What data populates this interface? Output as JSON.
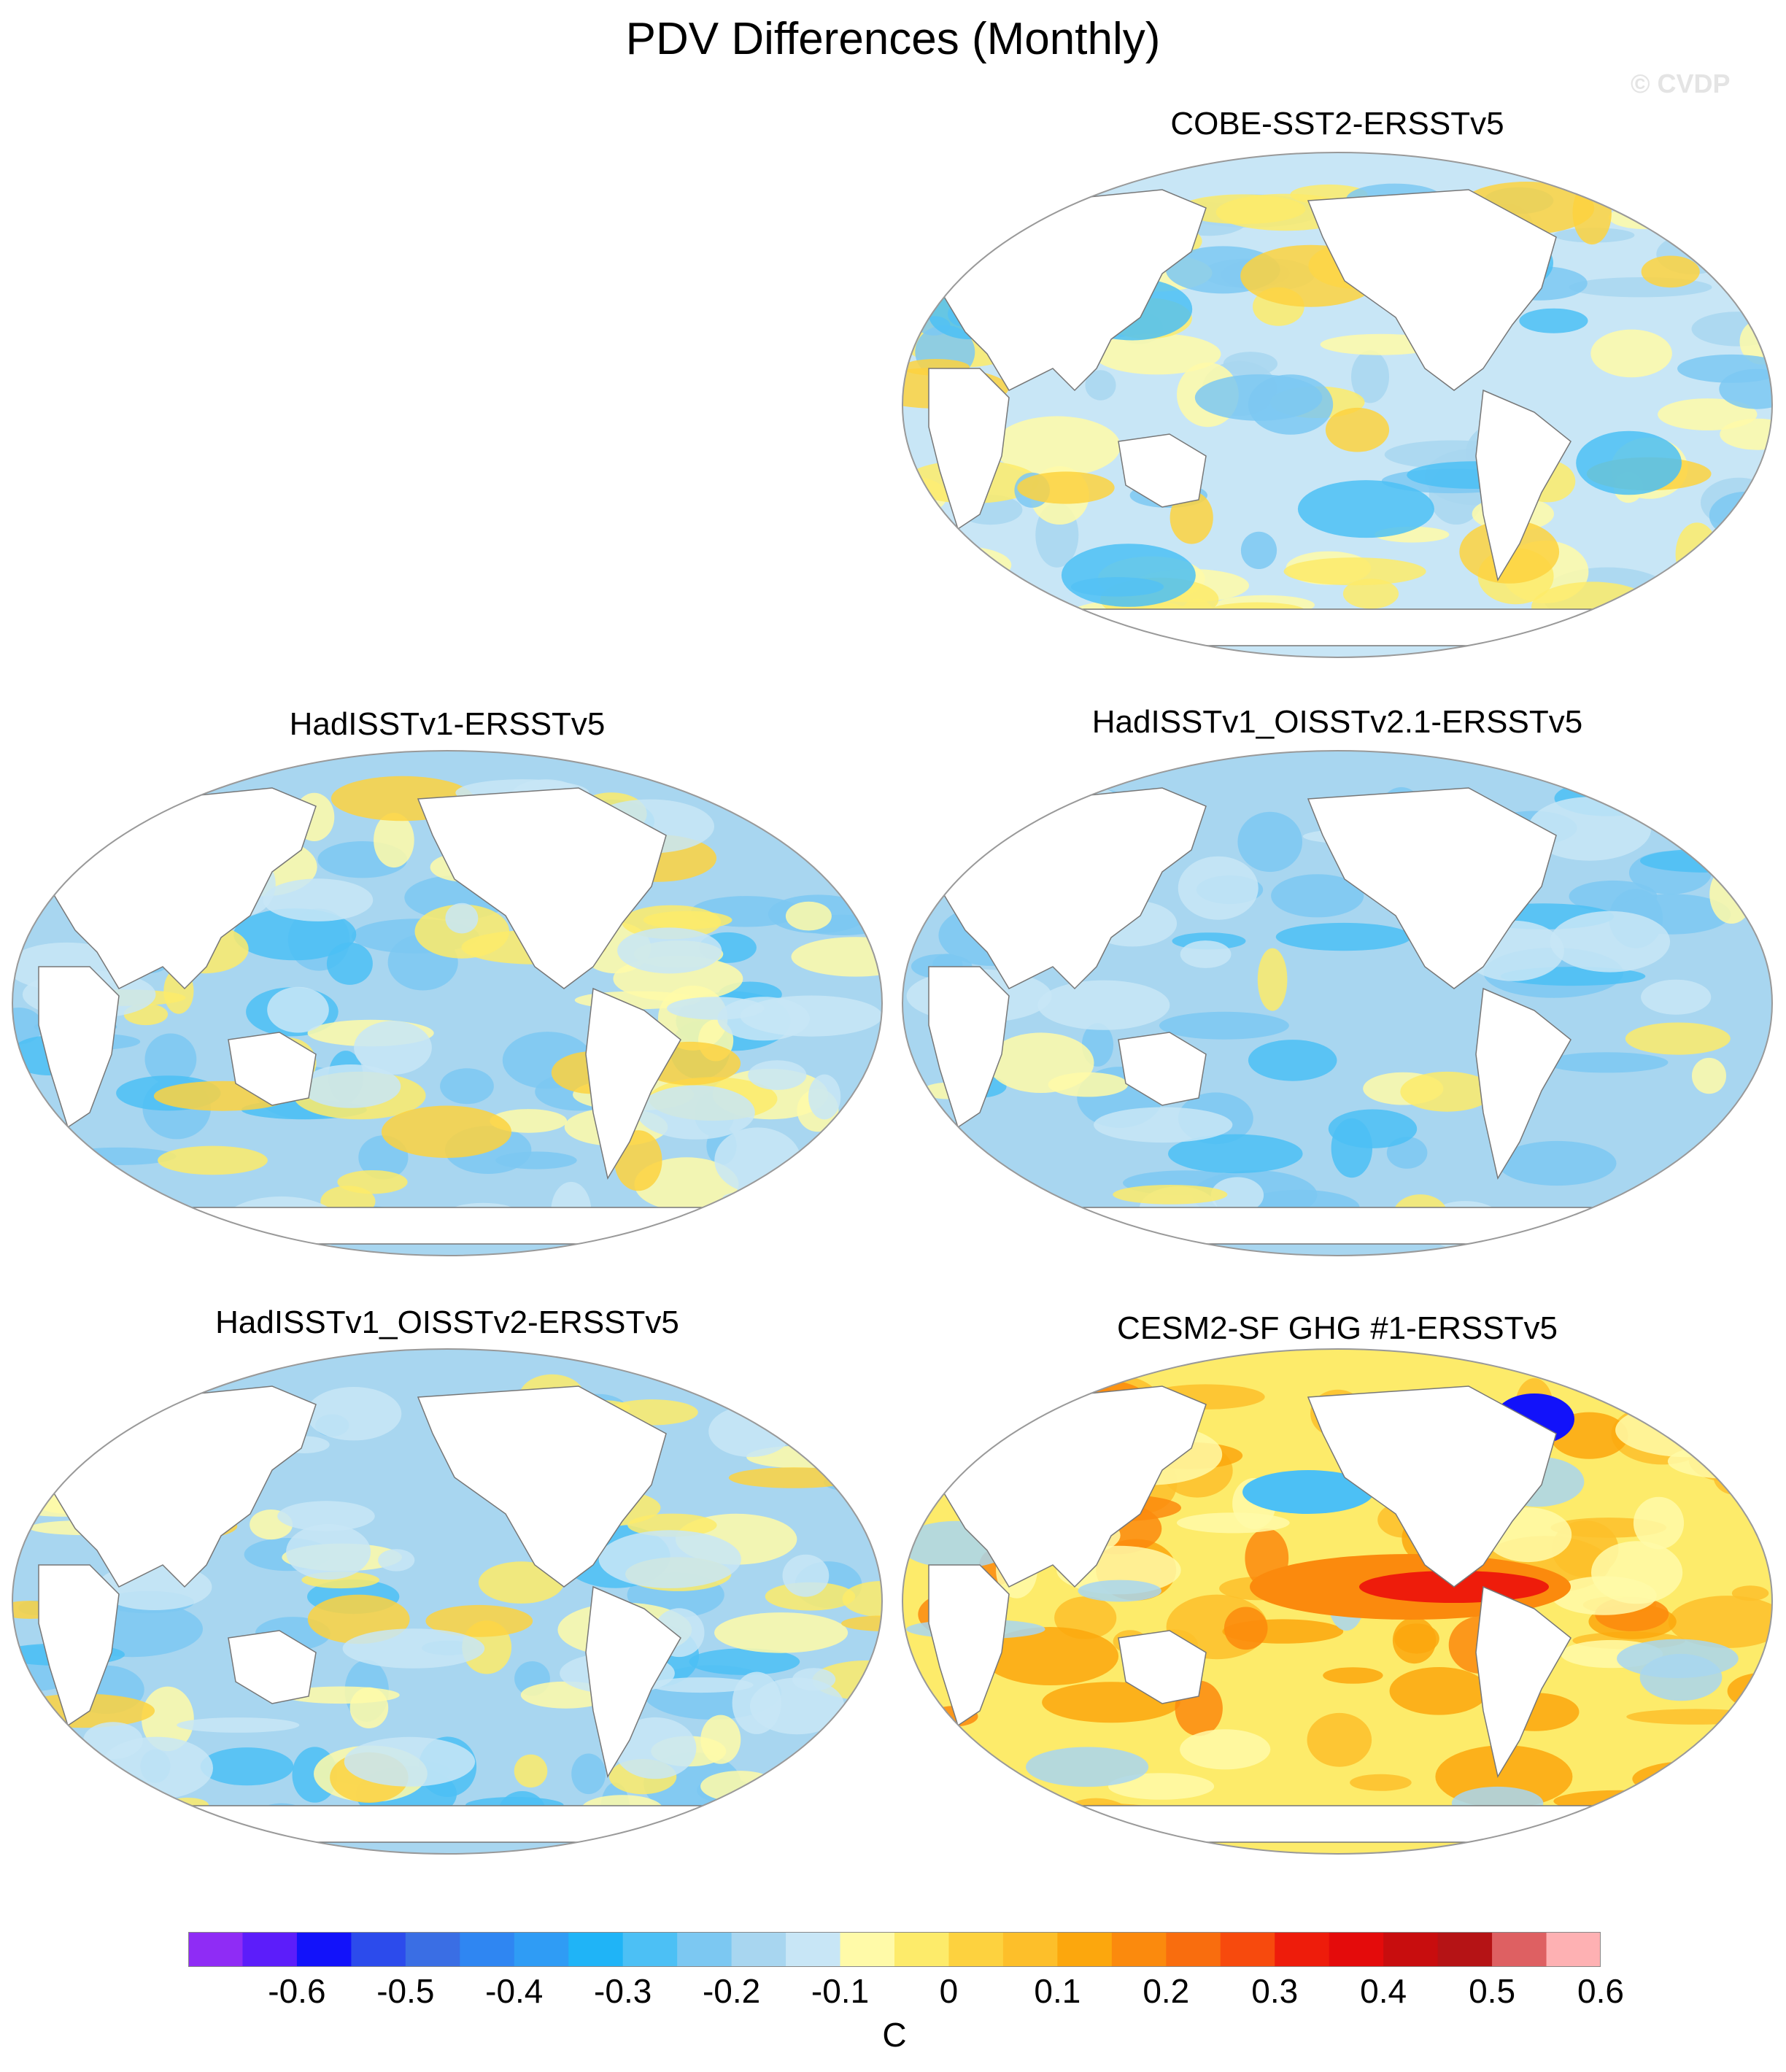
{
  "title": "PDV Differences (Monthly)",
  "credit": "© CVDP",
  "panels": [
    {
      "title": "COBE-SST2-ERSSTv5",
      "pattern": "mixed-weak"
    },
    {
      "title": "HadISSTv1-ERSSTv5",
      "pattern": "cool-pacific"
    },
    {
      "title": "HadISSTv1_OISSTv2.1-ERSSTv5",
      "pattern": "cool-global"
    },
    {
      "title": "HadISSTv1_OISSTv2-ERSSTv5",
      "pattern": "cool-pacific"
    },
    {
      "title": "CESM2-SF GHG #1-ERSSTv5",
      "pattern": "warm-tropical-pacific"
    }
  ],
  "colorbar": {
    "colors": [
      "#8f2cf5",
      "#5c1dfa",
      "#1212fa",
      "#2c4bec",
      "#3a6ee4",
      "#2f86f2",
      "#2f9cf5",
      "#1fb4f7",
      "#4cc0f5",
      "#7cc8f2",
      "#a8d6f0",
      "#c8e6f6",
      "#fffaa8",
      "#fdeb6a",
      "#fdd23f",
      "#fdbf2a",
      "#fca70d",
      "#fb8a0d",
      "#f96d0e",
      "#f74a0d",
      "#ee1c0b",
      "#e40b0b",
      "#c80d0e",
      "#b51315",
      "#de6062",
      "#feb1b3"
    ],
    "tick_labels": [
      "-0.6",
      "-0.5",
      "-0.4",
      "-0.3",
      "-0.2",
      "-0.1",
      "0",
      "0.1",
      "0.2",
      "0.3",
      "0.4",
      "0.5",
      "0.6"
    ],
    "unit": "C"
  }
}
